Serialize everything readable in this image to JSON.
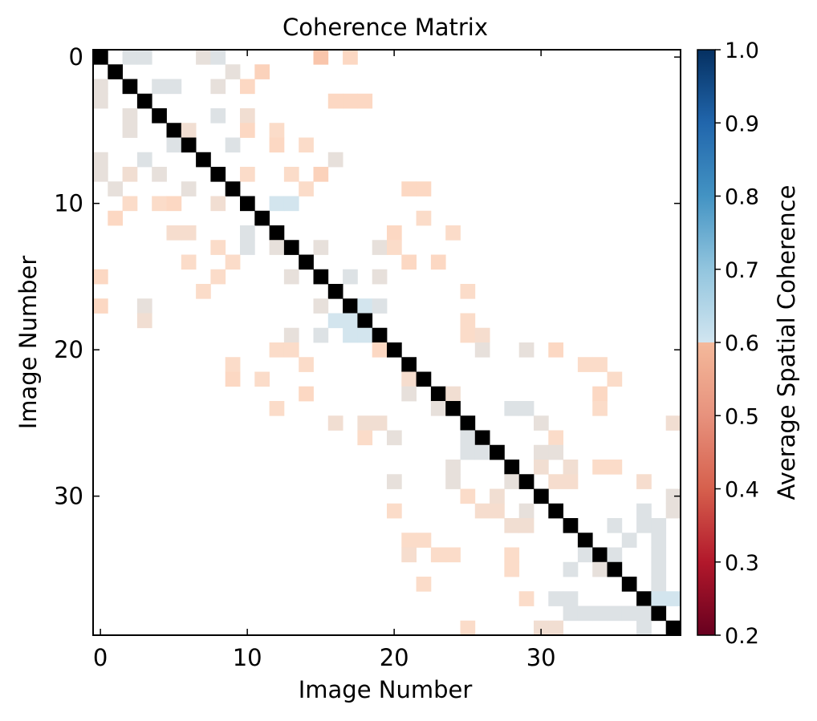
{
  "chart_data": {
    "type": "heatmap",
    "title": "Coherence Matrix",
    "xlabel": "Image Number",
    "ylabel": "Image Number",
    "size": 40,
    "x_ticks": [
      0,
      10,
      20,
      30
    ],
    "y_ticks": [
      0,
      10,
      20,
      30
    ],
    "colorbar": {
      "label": "Average Spatial Coherence",
      "range": [
        0.2,
        1.0
      ],
      "ticks": [
        "1.0",
        "0.9",
        "0.8",
        "0.7",
        "0.6",
        "0.5",
        "0.4",
        "0.3",
        "0.2"
      ],
      "threshold": 0.7,
      "note": "values below 0.7 displayed with colormap; values >= 0.7 not shown (white); diagonal shown in black",
      "colors": [
        "#67001f",
        "#b2182b",
        "#d6604d",
        "#f4a582",
        "#fddbc7",
        "#d1e5f0",
        "#92c5de",
        "#4393c3",
        "#2166ac",
        "#053061"
      ]
    },
    "diagonal_color": "#000000",
    "cells": [
      [
        0,
        0,
        1.0
      ],
      [
        0,
        2,
        0.62
      ],
      [
        0,
        3,
        0.62
      ],
      [
        0,
        7,
        0.6
      ],
      [
        0,
        8,
        0.62
      ],
      [
        0,
        15,
        0.52
      ],
      [
        0,
        17,
        0.55
      ],
      [
        1,
        1,
        1.0
      ],
      [
        1,
        9,
        0.6
      ],
      [
        1,
        11,
        0.54
      ],
      [
        2,
        0,
        0.6
      ],
      [
        2,
        2,
        1.0
      ],
      [
        2,
        4,
        0.62
      ],
      [
        2,
        5,
        0.62
      ],
      [
        2,
        8,
        0.6
      ],
      [
        2,
        10,
        0.55
      ],
      [
        3,
        0,
        0.6
      ],
      [
        3,
        3,
        1.0
      ],
      [
        3,
        16,
        0.55
      ],
      [
        3,
        17,
        0.55
      ],
      [
        3,
        18,
        0.55
      ],
      [
        4,
        2,
        0.6
      ],
      [
        4,
        4,
        1.0
      ],
      [
        4,
        8,
        0.62
      ],
      [
        4,
        10,
        0.58
      ],
      [
        5,
        2,
        0.6
      ],
      [
        5,
        5,
        1.0
      ],
      [
        5,
        6,
        0.58
      ],
      [
        5,
        10,
        0.55
      ],
      [
        5,
        12,
        0.56
      ],
      [
        6,
        5,
        0.62
      ],
      [
        6,
        6,
        1.0
      ],
      [
        6,
        9,
        0.62
      ],
      [
        6,
        12,
        0.55
      ],
      [
        6,
        14,
        0.56
      ],
      [
        7,
        0,
        0.6
      ],
      [
        7,
        3,
        0.62
      ],
      [
        7,
        7,
        1.0
      ],
      [
        7,
        16,
        0.6
      ],
      [
        8,
        0,
        0.6
      ],
      [
        8,
        2,
        0.58
      ],
      [
        8,
        4,
        0.6
      ],
      [
        8,
        8,
        1.0
      ],
      [
        8,
        10,
        0.56
      ],
      [
        8,
        13,
        0.56
      ],
      [
        8,
        15,
        0.54
      ],
      [
        9,
        1,
        0.6
      ],
      [
        9,
        6,
        0.6
      ],
      [
        9,
        9,
        1.0
      ],
      [
        9,
        14,
        0.56
      ],
      [
        9,
        21,
        0.55
      ],
      [
        9,
        22,
        0.55
      ],
      [
        10,
        2,
        0.56
      ],
      [
        10,
        4,
        0.56
      ],
      [
        10,
        5,
        0.55
      ],
      [
        10,
        8,
        0.58
      ],
      [
        10,
        10,
        1.0
      ],
      [
        10,
        12,
        0.64
      ],
      [
        10,
        13,
        0.64
      ],
      [
        11,
        1,
        0.55
      ],
      [
        11,
        11,
        1.0
      ],
      [
        11,
        22,
        0.56
      ],
      [
        12,
        5,
        0.57
      ],
      [
        12,
        6,
        0.57
      ],
      [
        12,
        10,
        0.62
      ],
      [
        12,
        12,
        1.0
      ],
      [
        12,
        20,
        0.55
      ],
      [
        12,
        24,
        0.56
      ],
      [
        13,
        8,
        0.56
      ],
      [
        13,
        10,
        0.62
      ],
      [
        13,
        12,
        0.6
      ],
      [
        13,
        13,
        1.0
      ],
      [
        13,
        15,
        0.6
      ],
      [
        13,
        19,
        0.6
      ],
      [
        13,
        20,
        0.56
      ],
      [
        14,
        6,
        0.56
      ],
      [
        14,
        9,
        0.56
      ],
      [
        14,
        14,
        1.0
      ],
      [
        14,
        21,
        0.55
      ],
      [
        14,
        23,
        0.55
      ],
      [
        15,
        0,
        0.55
      ],
      [
        15,
        8,
        0.56
      ],
      [
        15,
        13,
        0.6
      ],
      [
        15,
        15,
        1.0
      ],
      [
        15,
        17,
        0.62
      ],
      [
        15,
        19,
        0.6
      ],
      [
        16,
        7,
        0.56
      ],
      [
        16,
        16,
        1.0
      ],
      [
        16,
        25,
        0.56
      ],
      [
        17,
        0,
        0.55
      ],
      [
        17,
        3,
        0.6
      ],
      [
        17,
        15,
        0.6
      ],
      [
        17,
        17,
        1.0
      ],
      [
        17,
        18,
        0.64
      ],
      [
        17,
        19,
        0.62
      ],
      [
        18,
        3,
        0.58
      ],
      [
        18,
        16,
        0.64
      ],
      [
        18,
        17,
        0.64
      ],
      [
        18,
        18,
        1.0
      ],
      [
        18,
        25,
        0.56
      ],
      [
        19,
        13,
        0.6
      ],
      [
        19,
        15,
        0.62
      ],
      [
        19,
        17,
        0.64
      ],
      [
        19,
        18,
        0.64
      ],
      [
        19,
        19,
        1.0
      ],
      [
        19,
        25,
        0.56
      ],
      [
        19,
        26,
        0.57
      ],
      [
        20,
        12,
        0.56
      ],
      [
        20,
        13,
        0.56
      ],
      [
        20,
        19,
        0.55
      ],
      [
        20,
        20,
        1.0
      ],
      [
        20,
        26,
        0.6
      ],
      [
        20,
        29,
        0.6
      ],
      [
        20,
        31,
        0.55
      ],
      [
        21,
        9,
        0.56
      ],
      [
        21,
        14,
        0.56
      ],
      [
        21,
        21,
        1.0
      ],
      [
        21,
        33,
        0.56
      ],
      [
        21,
        34,
        0.56
      ],
      [
        22,
        9,
        0.55
      ],
      [
        22,
        11,
        0.56
      ],
      [
        22,
        21,
        0.57
      ],
      [
        22,
        22,
        1.0
      ],
      [
        22,
        35,
        0.56
      ],
      [
        23,
        14,
        0.55
      ],
      [
        23,
        21,
        0.6
      ],
      [
        23,
        23,
        1.0
      ],
      [
        23,
        24,
        0.58
      ],
      [
        23,
        34,
        0.55
      ],
      [
        24,
        12,
        0.56
      ],
      [
        24,
        23,
        0.6
      ],
      [
        24,
        24,
        1.0
      ],
      [
        24,
        28,
        0.62
      ],
      [
        24,
        29,
        0.62
      ],
      [
        24,
        34,
        0.56
      ],
      [
        25,
        16,
        0.58
      ],
      [
        25,
        18,
        0.58
      ],
      [
        25,
        19,
        0.58
      ],
      [
        25,
        25,
        1.0
      ],
      [
        25,
        30,
        0.6
      ],
      [
        25,
        39,
        0.58
      ],
      [
        26,
        18,
        0.56
      ],
      [
        26,
        20,
        0.6
      ],
      [
        26,
        25,
        0.62
      ],
      [
        26,
        26,
        1.0
      ],
      [
        26,
        31,
        0.56
      ],
      [
        27,
        25,
        0.62
      ],
      [
        27,
        26,
        0.62
      ],
      [
        27,
        27,
        1.0
      ],
      [
        27,
        30,
        0.6
      ],
      [
        27,
        31,
        0.6
      ],
      [
        28,
        24,
        0.6
      ],
      [
        28,
        28,
        1.0
      ],
      [
        28,
        30,
        0.58
      ],
      [
        28,
        32,
        0.58
      ],
      [
        28,
        34,
        0.56
      ],
      [
        28,
        35,
        0.56
      ],
      [
        29,
        20,
        0.6
      ],
      [
        29,
        24,
        0.6
      ],
      [
        29,
        28,
        0.6
      ],
      [
        29,
        29,
        1.0
      ],
      [
        29,
        31,
        0.57
      ],
      [
        29,
        32,
        0.57
      ],
      [
        29,
        37,
        0.57
      ],
      [
        30,
        25,
        0.56
      ],
      [
        30,
        27,
        0.58
      ],
      [
        30,
        30,
        1.0
      ],
      [
        30,
        39,
        0.6
      ],
      [
        31,
        20,
        0.56
      ],
      [
        31,
        26,
        0.57
      ],
      [
        31,
        27,
        0.57
      ],
      [
        31,
        29,
        0.6
      ],
      [
        31,
        31,
        1.0
      ],
      [
        31,
        37,
        0.62
      ],
      [
        31,
        39,
        0.6
      ],
      [
        32,
        28,
        0.58
      ],
      [
        32,
        29,
        0.58
      ],
      [
        32,
        32,
        1.0
      ],
      [
        32,
        35,
        0.62
      ],
      [
        32,
        37,
        0.62
      ],
      [
        32,
        38,
        0.62
      ],
      [
        33,
        21,
        0.56
      ],
      [
        33,
        22,
        0.56
      ],
      [
        33,
        33,
        1.0
      ],
      [
        33,
        36,
        0.62
      ],
      [
        33,
        38,
        0.62
      ],
      [
        34,
        21,
        0.57
      ],
      [
        34,
        23,
        0.56
      ],
      [
        34,
        24,
        0.56
      ],
      [
        34,
        28,
        0.56
      ],
      [
        34,
        33,
        0.62
      ],
      [
        34,
        34,
        1.0
      ],
      [
        34,
        35,
        0.62
      ],
      [
        34,
        38,
        0.62
      ],
      [
        35,
        28,
        0.56
      ],
      [
        35,
        32,
        0.62
      ],
      [
        35,
        34,
        0.6
      ],
      [
        35,
        35,
        1.0
      ],
      [
        35,
        38,
        0.62
      ],
      [
        36,
        22,
        0.56
      ],
      [
        36,
        36,
        1.0
      ],
      [
        36,
        38,
        0.62
      ],
      [
        37,
        29,
        0.56
      ],
      [
        37,
        31,
        0.62
      ],
      [
        37,
        32,
        0.62
      ],
      [
        37,
        37,
        1.0
      ],
      [
        37,
        38,
        0.64
      ],
      [
        37,
        39,
        0.64
      ],
      [
        38,
        32,
        0.62
      ],
      [
        38,
        33,
        0.62
      ],
      [
        38,
        34,
        0.62
      ],
      [
        38,
        35,
        0.62
      ],
      [
        38,
        36,
        0.62
      ],
      [
        38,
        37,
        0.62
      ],
      [
        38,
        38,
        1.0
      ],
      [
        39,
        25,
        0.56
      ],
      [
        39,
        30,
        0.58
      ],
      [
        39,
        31,
        0.58
      ],
      [
        39,
        37,
        0.62
      ],
      [
        39,
        39,
        1.0
      ]
    ]
  }
}
